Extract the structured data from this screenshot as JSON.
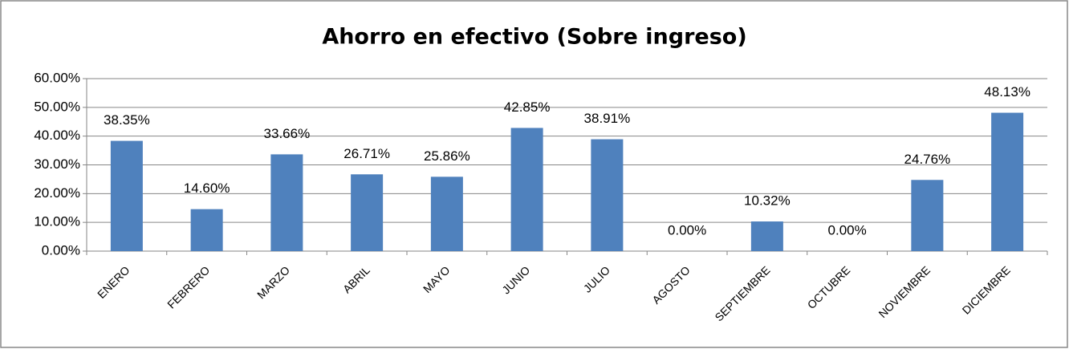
{
  "chart_data": {
    "type": "bar",
    "title": "Ahorro en efectivo (Sobre ingreso)",
    "categories": [
      "ENERO",
      "FEBRERO",
      "MARZO",
      "ABRIL",
      "MAYO",
      "JUNIO",
      "JULIO",
      "AGOSTO",
      "SEPTIEMBRE",
      "OCTUBRE",
      "NOVIEMBRE",
      "DICIEMBRE"
    ],
    "values": [
      38.35,
      14.6,
      33.66,
      26.71,
      25.86,
      42.85,
      38.91,
      0,
      10.32,
      0,
      24.76,
      48.13
    ],
    "value_labels": [
      "38.35%",
      "14.60%",
      "33.66%",
      "26.71%",
      "25.86%",
      "42.85%",
      "38.91%",
      "0.00%",
      "10.32%",
      "0.00%",
      "24.76%",
      "48.13%"
    ],
    "color": "#4f81bd",
    "ylim": [
      0,
      60
    ],
    "yticks": [
      {
        "value": 0,
        "label": "0.00%"
      },
      {
        "value": 10,
        "label": "10.00%"
      },
      {
        "value": 20,
        "label": "20.00%"
      },
      {
        "value": 30,
        "label": "30.00%"
      },
      {
        "value": 40,
        "label": "40.00%"
      },
      {
        "value": 50,
        "label": "50.00%"
      },
      {
        "value": 60,
        "label": "60.00%"
      }
    ],
    "grid": true
  }
}
